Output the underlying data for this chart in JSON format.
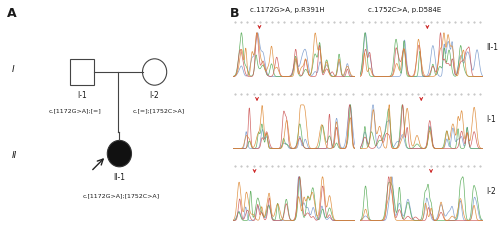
{
  "panel_A_label": "A",
  "panel_B_label": "B",
  "gen_I_label": "I",
  "gen_II_label": "II",
  "father_label": "I-1",
  "mother_label": "I-2",
  "proband_label": "II-1",
  "father_genotype": "c.[1172G>A];[=]",
  "mother_genotype": "c.[=];[1752C>A]",
  "proband_genotype": "c.[1172G>A];[1752C>A]",
  "col1_title": "c.1172G>A, p.R391H",
  "col2_title": "c.1752C>A, p.D584E",
  "row_labels": [
    "II-1",
    "I-1",
    "I-2"
  ],
  "bg_color": "#ffffff",
  "text_color": "#1a1a1a",
  "seq_blue": "#7799cc",
  "seq_green": "#55aa55",
  "seq_red": "#cc5555",
  "seq_black": "#444444",
  "seq_orange": "#dd8833"
}
